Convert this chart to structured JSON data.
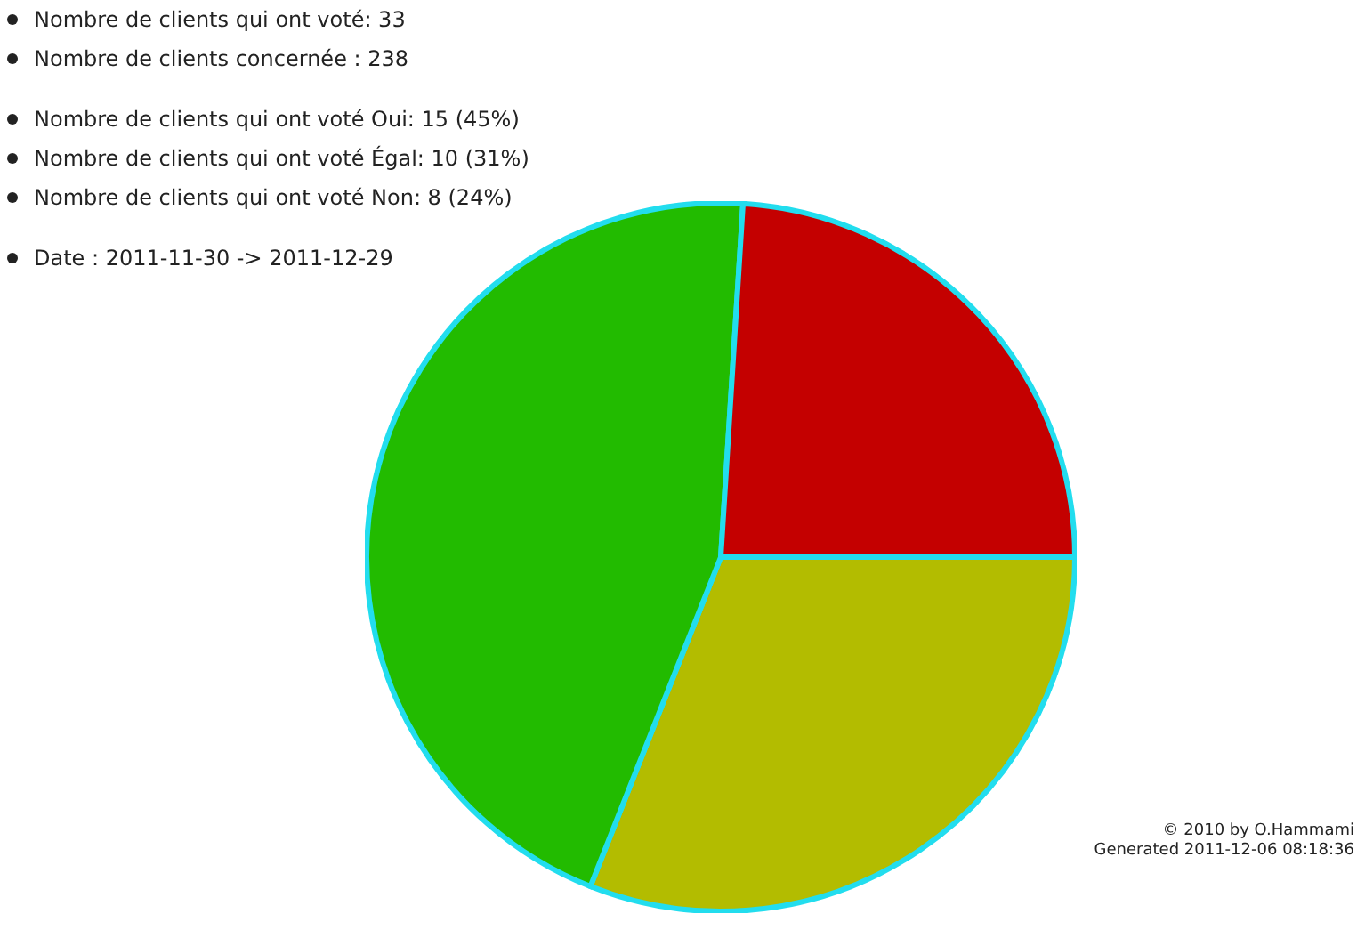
{
  "chart_data": {
    "type": "pie",
    "categories": [
      null,
      null,
      null
    ],
    "values": [
      31,
      45,
      24
    ],
    "colors": [
      "#b3bc00",
      "#22bb00",
      "#c40000"
    ],
    "annotations": [
      "Nombre de clients qui ont voté: 33",
      "Nombre de clients concernée : 238",
      "Nombre de clients qui ont voté Oui: 15 (45%)",
      "Nombre de clients qui ont voté Égal: 10 (31%)",
      "Nombre de clients qui ont voté Non: 8 (24%)",
      "Date : 2011-11-30 -> 2011-12-29",
      "© 2010 by O.Hammami",
      "Generated 2011-12-06 08:18:36"
    ]
  }
}
